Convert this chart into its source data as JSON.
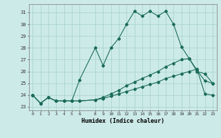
{
  "xlabel": "Humidex (Indice chaleur)",
  "bg_color": "#cceae8",
  "line_color": "#1a6b5a",
  "grid_color": "#aad4d0",
  "xlim": [
    -0.5,
    23.5
  ],
  "ylim": [
    22.7,
    31.7
  ],
  "xtick_vals": [
    0,
    1,
    2,
    3,
    4,
    5,
    6,
    8,
    9,
    10,
    11,
    12,
    13,
    14,
    15,
    16,
    17,
    18,
    19,
    20,
    21,
    22,
    23
  ],
  "xtick_labels": [
    "0",
    "1",
    "2",
    "3",
    "4",
    "5",
    "6",
    "8",
    "9",
    "10",
    "11",
    "12",
    "13",
    "14",
    "15",
    "16",
    "17",
    "18",
    "19",
    "20",
    "21",
    "22",
    "23"
  ],
  "ytick_vals": [
    23,
    24,
    25,
    26,
    27,
    28,
    29,
    30,
    31
  ],
  "series1_x": [
    0,
    1,
    2,
    3,
    4,
    5,
    6,
    8,
    9,
    10,
    11,
    12,
    13,
    14,
    15,
    16,
    17,
    18,
    19,
    20,
    21,
    22,
    23
  ],
  "series1_y": [
    24.0,
    23.3,
    23.8,
    23.5,
    23.5,
    23.5,
    25.3,
    28.0,
    26.5,
    28.0,
    28.8,
    30.0,
    31.1,
    30.7,
    31.1,
    30.7,
    31.1,
    30.0,
    28.1,
    27.1,
    26.0,
    25.8,
    25.0
  ],
  "series2_x": [
    0,
    1,
    2,
    3,
    4,
    5,
    6,
    8,
    9,
    10,
    11,
    12,
    13,
    14,
    15,
    16,
    17,
    18,
    19,
    20,
    21,
    22,
    23
  ],
  "series2_y": [
    24.0,
    23.3,
    23.8,
    23.5,
    23.5,
    23.5,
    23.5,
    23.6,
    23.7,
    23.9,
    24.1,
    24.3,
    24.5,
    24.7,
    24.9,
    25.1,
    25.4,
    25.6,
    25.8,
    26.0,
    26.2,
    24.1,
    24.0
  ],
  "series3_x": [
    0,
    1,
    2,
    3,
    4,
    5,
    6,
    8,
    9,
    10,
    11,
    12,
    13,
    14,
    15,
    16,
    17,
    18,
    19,
    20,
    21,
    22,
    23
  ],
  "series3_y": [
    24.0,
    23.3,
    23.8,
    23.5,
    23.5,
    23.5,
    23.5,
    23.6,
    23.8,
    24.1,
    24.4,
    24.8,
    25.1,
    25.4,
    25.7,
    26.0,
    26.4,
    26.7,
    27.0,
    27.1,
    26.1,
    25.2,
    25.0
  ]
}
